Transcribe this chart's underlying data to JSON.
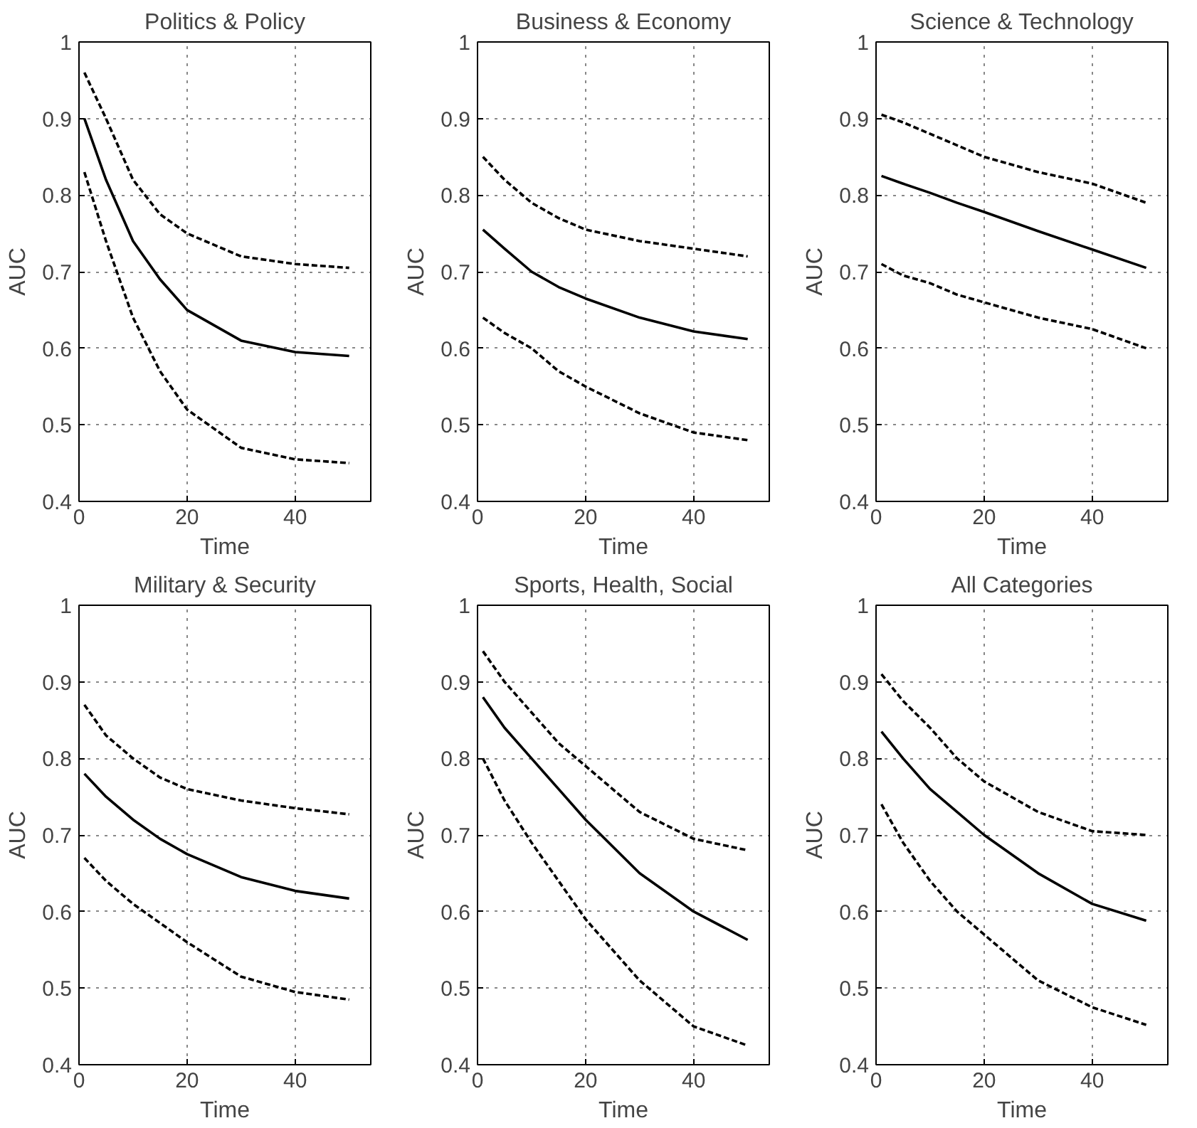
{
  "chart_data": [
    {
      "type": "line",
      "title": "Politics & Policy",
      "xlabel": "Time",
      "ylabel": "AUC",
      "xlim": [
        0,
        54
      ],
      "ylim": [
        0.4,
        1
      ],
      "xticks": [
        0,
        20,
        40
      ],
      "yticks": [
        0.4,
        0.5,
        0.6,
        0.7,
        0.8,
        0.9,
        1
      ],
      "grid": true,
      "x": [
        1,
        5,
        10,
        15,
        20,
        30,
        40,
        50
      ],
      "series": [
        {
          "color": "#000000",
          "line_style": "solid",
          "values": [
            0.9,
            0.82,
            0.74,
            0.69,
            0.65,
            0.61,
            0.595,
            0.59
          ]
        },
        {
          "color": "#000000",
          "line_style": "dashed",
          "values": [
            0.96,
            0.9,
            0.82,
            0.775,
            0.75,
            0.72,
            0.71,
            0.705
          ]
        },
        {
          "color": "#000000",
          "line_style": "dashed",
          "values": [
            0.83,
            0.74,
            0.64,
            0.57,
            0.52,
            0.47,
            0.455,
            0.45
          ]
        }
      ]
    },
    {
      "type": "line",
      "title": "Business & Economy",
      "xlabel": "Time",
      "ylabel": "AUC",
      "xlim": [
        0,
        54
      ],
      "ylim": [
        0.4,
        1
      ],
      "xticks": [
        0,
        20,
        40
      ],
      "yticks": [
        0.4,
        0.5,
        0.6,
        0.7,
        0.8,
        0.9,
        1
      ],
      "grid": true,
      "x": [
        1,
        5,
        10,
        15,
        20,
        30,
        40,
        50
      ],
      "series": [
        {
          "color": "#000000",
          "line_style": "solid",
          "values": [
            0.755,
            0.73,
            0.7,
            0.68,
            0.665,
            0.64,
            0.622,
            0.612
          ]
        },
        {
          "color": "#000000",
          "line_style": "dashed",
          "values": [
            0.85,
            0.82,
            0.79,
            0.77,
            0.755,
            0.74,
            0.73,
            0.72
          ]
        },
        {
          "color": "#000000",
          "line_style": "dashed",
          "values": [
            0.64,
            0.62,
            0.6,
            0.57,
            0.55,
            0.515,
            0.49,
            0.48
          ]
        }
      ]
    },
    {
      "type": "line",
      "title": "Science & Technology",
      "xlabel": "Time",
      "ylabel": "AUC",
      "xlim": [
        0,
        54
      ],
      "ylim": [
        0.4,
        1
      ],
      "xticks": [
        0,
        20,
        40
      ],
      "yticks": [
        0.4,
        0.5,
        0.6,
        0.7,
        0.8,
        0.9,
        1
      ],
      "grid": true,
      "x": [
        1,
        5,
        10,
        15,
        20,
        30,
        40,
        50
      ],
      "series": [
        {
          "color": "#000000",
          "line_style": "solid",
          "values": [
            0.825,
            0.815,
            0.803,
            0.79,
            0.778,
            0.753,
            0.729,
            0.705
          ]
        },
        {
          "color": "#000000",
          "line_style": "dashed",
          "values": [
            0.905,
            0.895,
            0.88,
            0.865,
            0.85,
            0.83,
            0.815,
            0.79
          ]
        },
        {
          "color": "#000000",
          "line_style": "dashed",
          "values": [
            0.71,
            0.695,
            0.685,
            0.67,
            0.66,
            0.64,
            0.625,
            0.6
          ]
        }
      ]
    },
    {
      "type": "line",
      "title": "Military & Security",
      "xlabel": "Time",
      "ylabel": "AUC",
      "xlim": [
        0,
        54
      ],
      "ylim": [
        0.4,
        1
      ],
      "xticks": [
        0,
        20,
        40
      ],
      "yticks": [
        0.4,
        0.5,
        0.6,
        0.7,
        0.8,
        0.9,
        1
      ],
      "grid": true,
      "x": [
        1,
        5,
        10,
        15,
        20,
        30,
        40,
        50
      ],
      "series": [
        {
          "color": "#000000",
          "line_style": "solid",
          "values": [
            0.78,
            0.75,
            0.72,
            0.695,
            0.675,
            0.645,
            0.627,
            0.617
          ]
        },
        {
          "color": "#000000",
          "line_style": "dashed",
          "values": [
            0.87,
            0.83,
            0.8,
            0.775,
            0.76,
            0.745,
            0.735,
            0.727
          ]
        },
        {
          "color": "#000000",
          "line_style": "dashed",
          "values": [
            0.67,
            0.64,
            0.61,
            0.585,
            0.56,
            0.515,
            0.495,
            0.485
          ]
        }
      ]
    },
    {
      "type": "line",
      "title": "Sports, Health, Social",
      "xlabel": "Time",
      "ylabel": "AUC",
      "xlim": [
        0,
        54
      ],
      "ylim": [
        0.4,
        1
      ],
      "xticks": [
        0,
        20,
        40
      ],
      "yticks": [
        0.4,
        0.5,
        0.6,
        0.7,
        0.8,
        0.9,
        1
      ],
      "grid": true,
      "x": [
        1,
        5,
        10,
        15,
        20,
        30,
        40,
        50
      ],
      "series": [
        {
          "color": "#000000",
          "line_style": "solid",
          "values": [
            0.88,
            0.84,
            0.8,
            0.76,
            0.72,
            0.65,
            0.6,
            0.563
          ]
        },
        {
          "color": "#000000",
          "line_style": "dashed",
          "values": [
            0.94,
            0.9,
            0.86,
            0.82,
            0.79,
            0.73,
            0.695,
            0.68
          ]
        },
        {
          "color": "#000000",
          "line_style": "dashed",
          "values": [
            0.8,
            0.745,
            0.69,
            0.64,
            0.59,
            0.51,
            0.45,
            0.425
          ]
        }
      ]
    },
    {
      "type": "line",
      "title": "All Categories",
      "xlabel": "Time",
      "ylabel": "AUC",
      "xlim": [
        0,
        54
      ],
      "ylim": [
        0.4,
        1
      ],
      "xticks": [
        0,
        20,
        40
      ],
      "yticks": [
        0.4,
        0.5,
        0.6,
        0.7,
        0.8,
        0.9,
        1
      ],
      "grid": true,
      "x": [
        1,
        5,
        10,
        15,
        20,
        30,
        40,
        50
      ],
      "series": [
        {
          "color": "#000000",
          "line_style": "solid",
          "values": [
            0.835,
            0.8,
            0.76,
            0.73,
            0.7,
            0.65,
            0.61,
            0.588
          ]
        },
        {
          "color": "#000000",
          "line_style": "dashed",
          "values": [
            0.91,
            0.875,
            0.84,
            0.8,
            0.77,
            0.73,
            0.705,
            0.7
          ]
        },
        {
          "color": "#000000",
          "line_style": "dashed",
          "values": [
            0.74,
            0.69,
            0.64,
            0.6,
            0.57,
            0.51,
            0.475,
            0.452
          ]
        }
      ]
    }
  ]
}
